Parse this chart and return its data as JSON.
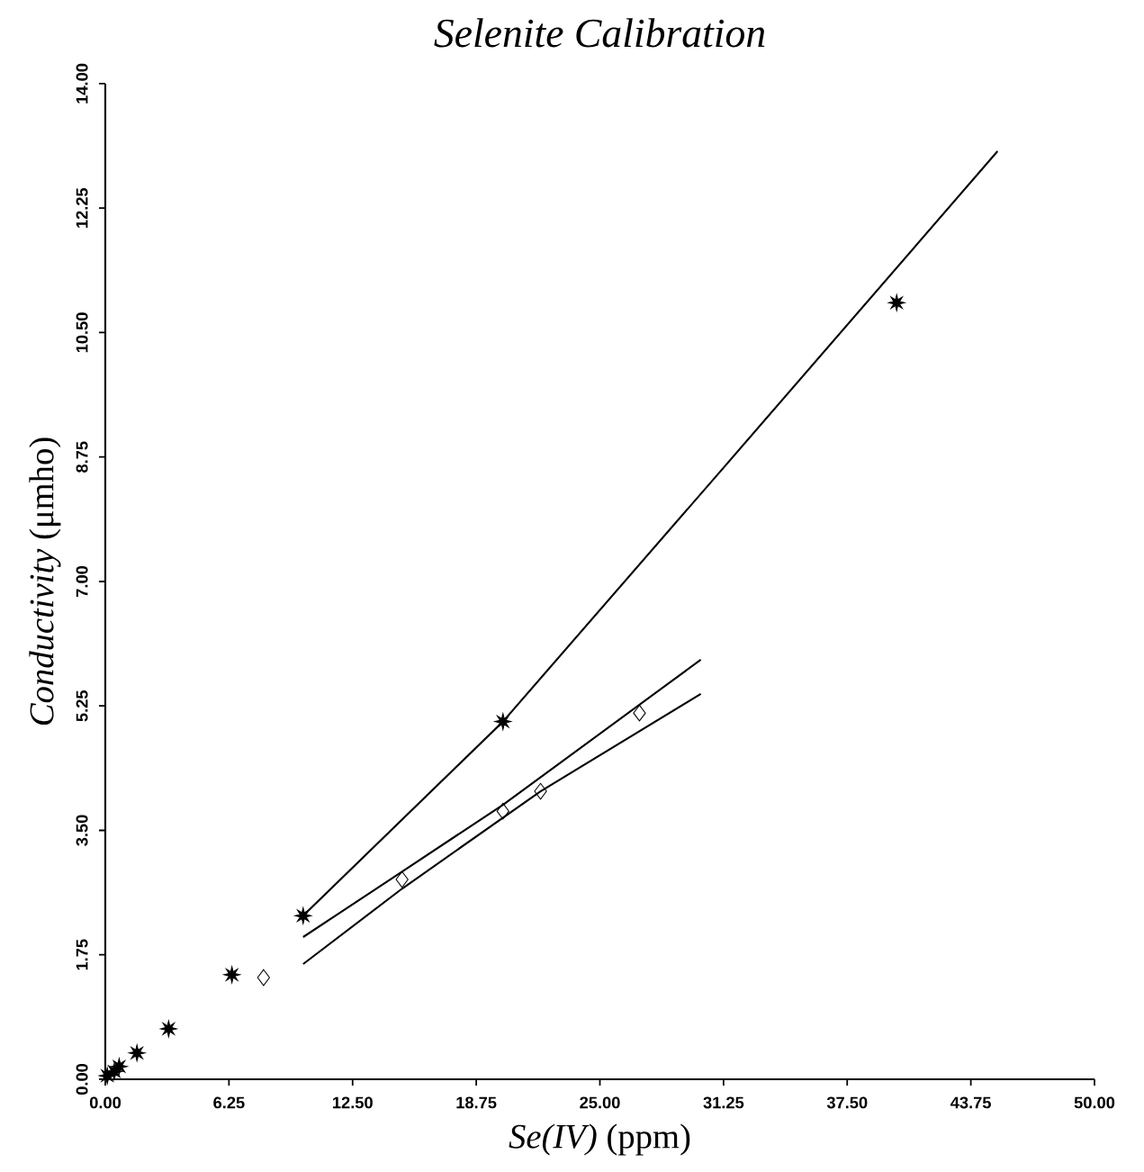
{
  "chart_data": {
    "type": "scatter",
    "title": "*Selenite Calibration*",
    "xlabel": "*Se(IV)* (ppm)",
    "ylabel": "*Conductivity* (μmho)",
    "xlim": [
      0,
      50
    ],
    "ylim": [
      0,
      14
    ],
    "xticks": [
      {
        "value": 0,
        "label": "0.00"
      },
      {
        "value": 6.25,
        "label": "6.25"
      },
      {
        "value": 12.5,
        "label": "12.50"
      },
      {
        "value": 18.75,
        "label": "18.75"
      },
      {
        "value": 25,
        "label": "25.00"
      },
      {
        "value": 31.25,
        "label": "31.25"
      },
      {
        "value": 37.5,
        "label": "37.50"
      },
      {
        "value": 43.75,
        "label": "43.75"
      },
      {
        "value": 50,
        "label": "50.00"
      }
    ],
    "yticks": [
      {
        "value": 0,
        "label": "0.00"
      },
      {
        "value": 1.75,
        "label": "1.75"
      },
      {
        "value": 3.5,
        "label": "3.50"
      },
      {
        "value": 5.25,
        "label": "5.25"
      },
      {
        "value": 7,
        "label": "7.00"
      },
      {
        "value": 8.75,
        "label": "8.75"
      },
      {
        "value": 10.5,
        "label": "10.50"
      },
      {
        "value": 12.25,
        "label": "12.25"
      },
      {
        "value": 14,
        "label": "14.00"
      }
    ],
    "grid": false,
    "series": [
      {
        "marker": "star",
        "color": "#000000",
        "x": [
          0.1,
          0.45,
          0.7,
          1.6,
          3.2,
          6.4,
          10.0,
          20.1,
          40.0
        ],
        "values": [
          0.05,
          0.11,
          0.18,
          0.37,
          0.71,
          1.47,
          2.3,
          5.03,
          10.92
        ]
      },
      {
        "marker": "diamond",
        "color": "#000000",
        "x": [
          8.0,
          15.0,
          20.1,
          22.0,
          27.0
        ],
        "values": [
          1.43,
          2.81,
          3.77,
          4.05,
          5.15
        ]
      },
      {
        "type": "line",
        "line_style": "solid",
        "color": "#000000",
        "x": [
          10.0,
          20.1,
          31.25,
          45.1
        ],
        "values": [
          2.3,
          5.03,
          8.6,
          13.05
        ]
      },
      {
        "type": "line",
        "line_style": "solid",
        "color": "#000000",
        "x": [
          10.0,
          15.0,
          20.1,
          30.1
        ],
        "values": [
          2.0,
          2.92,
          3.86,
          5.9
        ]
      },
      {
        "type": "line",
        "line_style": "solid",
        "color": "#000000",
        "x": [
          10.0,
          15.0,
          22.0,
          30.1
        ],
        "values": [
          1.62,
          2.68,
          4.05,
          5.42
        ]
      }
    ]
  }
}
